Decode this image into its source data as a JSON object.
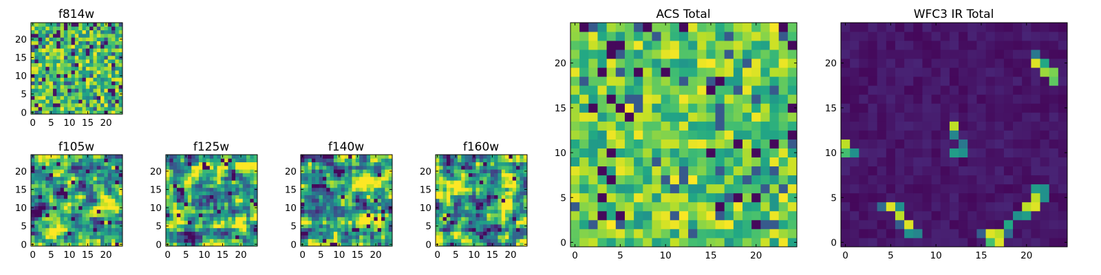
{
  "chart_data": [
    {
      "id": "f814w",
      "type": "heatmap",
      "title": "f814w",
      "size": 25,
      "seed": 814,
      "style": "noise",
      "xticks": [
        0,
        5,
        10,
        15,
        20
      ],
      "yticks": [
        0,
        5,
        10,
        15,
        20
      ]
    },
    {
      "id": "f105w",
      "type": "heatmap",
      "title": "f105w",
      "size": 25,
      "seed": 105,
      "style": "smooth",
      "xticks": [
        0,
        5,
        10,
        15,
        20
      ],
      "yticks": [
        0,
        5,
        10,
        15,
        20
      ]
    },
    {
      "id": "f125w",
      "type": "heatmap",
      "title": "f125w",
      "size": 25,
      "seed": 125,
      "style": "smooth",
      "xticks": [
        0,
        5,
        10,
        15,
        20
      ],
      "yticks": [
        0,
        5,
        10,
        15,
        20
      ]
    },
    {
      "id": "f140w",
      "type": "heatmap",
      "title": "f140w",
      "size": 25,
      "seed": 140,
      "style": "smooth",
      "xticks": [
        0,
        5,
        10,
        15,
        20
      ],
      "yticks": [
        0,
        5,
        10,
        15,
        20
      ]
    },
    {
      "id": "f160w",
      "type": "heatmap",
      "title": "f160w",
      "size": 25,
      "seed": 160,
      "style": "smooth",
      "xticks": [
        0,
        5,
        10,
        15,
        20
      ],
      "yticks": [
        0,
        5,
        10,
        15,
        20
      ]
    },
    {
      "id": "acs_total",
      "type": "heatmap",
      "title": "ACS Total",
      "size": 25,
      "seed": 777,
      "style": "acs",
      "xticks": [
        0,
        5,
        10,
        15,
        20
      ],
      "yticks": [
        0,
        5,
        10,
        15,
        20
      ]
    },
    {
      "id": "wfc3_total",
      "type": "heatmap",
      "title": "WFC3 IR Total",
      "size": 25,
      "seed": 333,
      "style": "ir",
      "xticks": [
        0,
        5,
        10,
        15,
        20
      ],
      "yticks": [
        0,
        5,
        10,
        15,
        20
      ],
      "sources": [
        {
          "x": 21,
          "y": 20,
          "v": 0.95
        },
        {
          "x": 22,
          "y": 20,
          "v": 0.6
        },
        {
          "x": 22,
          "y": 19,
          "v": 0.85
        },
        {
          "x": 23,
          "y": 19,
          "v": 0.8
        },
        {
          "x": 23,
          "y": 18,
          "v": 0.75
        },
        {
          "x": 21,
          "y": 21,
          "v": 0.4
        },
        {
          "x": 12,
          "y": 13,
          "v": 0.9
        },
        {
          "x": 12,
          "y": 12,
          "v": 0.45
        },
        {
          "x": 12,
          "y": 10,
          "v": 0.55
        },
        {
          "x": 13,
          "y": 10,
          "v": 0.5
        },
        {
          "x": 13,
          "y": 11,
          "v": 0.4
        },
        {
          "x": 0,
          "y": 11,
          "v": 0.9
        },
        {
          "x": 0,
          "y": 10,
          "v": 0.7
        },
        {
          "x": 1,
          "y": 10,
          "v": 0.5
        },
        {
          "x": 5,
          "y": 4,
          "v": 0.95
        },
        {
          "x": 6,
          "y": 4,
          "v": 0.5
        },
        {
          "x": 6,
          "y": 3,
          "v": 0.9
        },
        {
          "x": 7,
          "y": 2,
          "v": 0.95
        },
        {
          "x": 7,
          "y": 1,
          "v": 0.5
        },
        {
          "x": 8,
          "y": 1,
          "v": 0.45
        },
        {
          "x": 6,
          "y": 2,
          "v": 0.3
        },
        {
          "x": 4,
          "y": 4,
          "v": 0.35
        },
        {
          "x": 16,
          "y": 1,
          "v": 0.95
        },
        {
          "x": 16,
          "y": 0,
          "v": 0.7
        },
        {
          "x": 17,
          "y": 1,
          "v": 0.9
        },
        {
          "x": 17,
          "y": 0,
          "v": 0.95
        },
        {
          "x": 18,
          "y": 2,
          "v": 0.6
        },
        {
          "x": 19,
          "y": 3,
          "v": 0.5
        },
        {
          "x": 20,
          "y": 3,
          "v": 0.55
        },
        {
          "x": 20,
          "y": 4,
          "v": 0.9
        },
        {
          "x": 21,
          "y": 4,
          "v": 0.95
        },
        {
          "x": 21,
          "y": 5,
          "v": 0.9
        },
        {
          "x": 21,
          "y": 6,
          "v": 0.55
        },
        {
          "x": 22,
          "y": 5,
          "v": 0.5
        },
        {
          "x": 22,
          "y": 6,
          "v": 0.5
        },
        {
          "x": 18,
          "y": 1,
          "v": 0.35
        },
        {
          "x": 15,
          "y": 1,
          "v": 0.3
        }
      ]
    }
  ]
}
